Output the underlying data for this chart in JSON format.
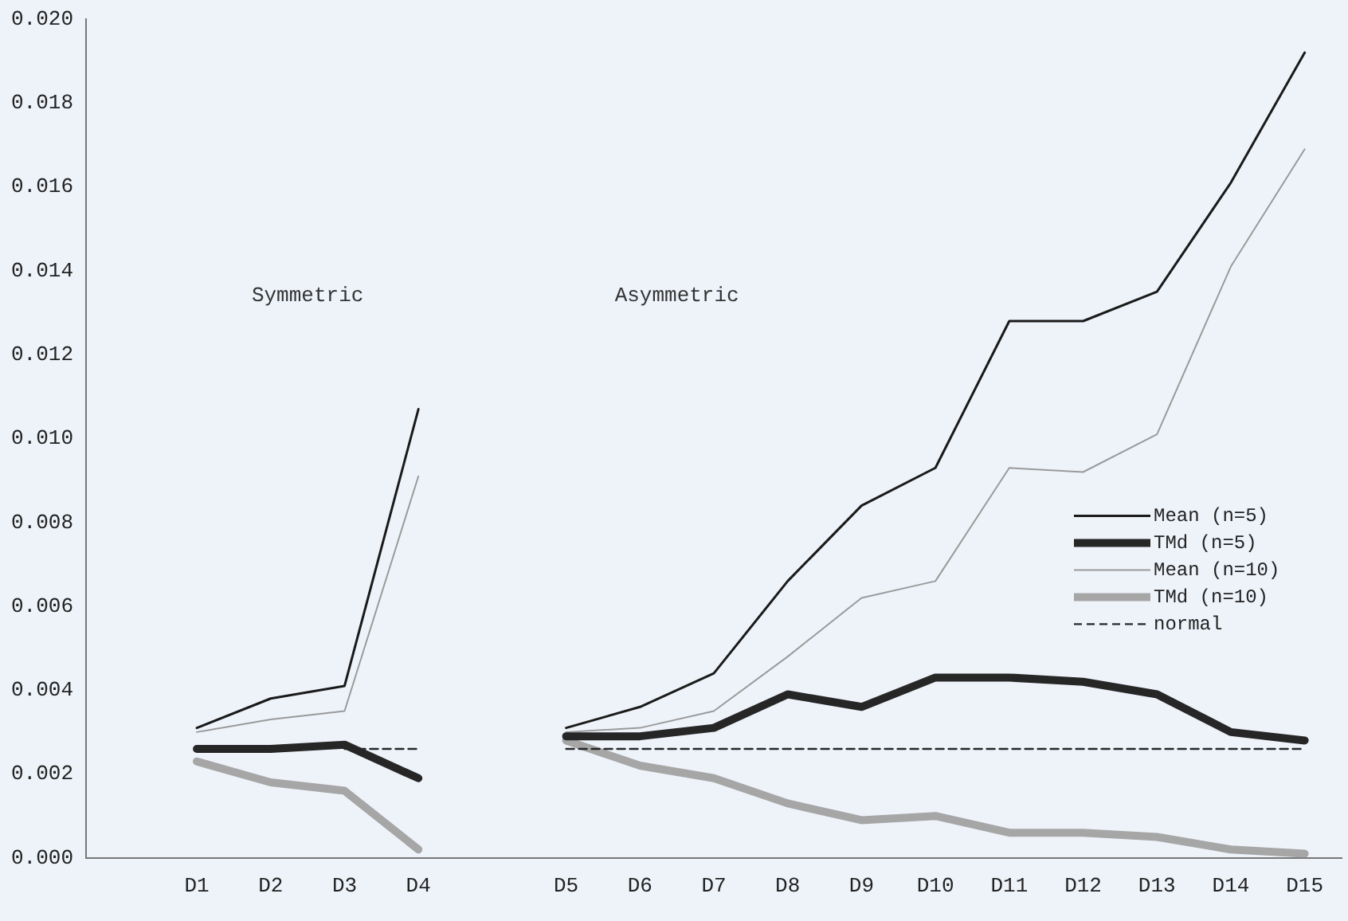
{
  "chart_data": {
    "type": "line",
    "categories": [
      null,
      "D1",
      "D2",
      "D3",
      "D4",
      null,
      "D5",
      "D6",
      "D7",
      "D8",
      "D9",
      "D10",
      "D11",
      "D12",
      "D13",
      "D14",
      "D15"
    ],
    "series": [
      {
        "name": "Mean (n=5)",
        "color": "#1a1a1a",
        "values": [
          null,
          0.0031,
          0.0038,
          0.0041,
          0.0107,
          null,
          0.0031,
          0.0036,
          0.0044,
          0.0066,
          0.0084,
          0.0093,
          0.0128,
          0.0128,
          0.0135,
          0.0161,
          0.0192
        ]
      },
      {
        "name": "TMd (n=5)",
        "color": "#262626",
        "values": [
          null,
          0.0026,
          0.0026,
          0.0027,
          0.0019,
          null,
          0.0029,
          0.0029,
          0.0031,
          0.0039,
          0.0036,
          0.0043,
          0.0043,
          0.0042,
          0.0039,
          0.003,
          0.0028
        ]
      },
      {
        "name": "Mean (n=10)",
        "color": "#9a9a9a",
        "values": [
          null,
          0.003,
          0.0033,
          0.0035,
          0.0091,
          null,
          0.003,
          0.0031,
          0.0035,
          0.0048,
          0.0062,
          0.0066,
          0.0093,
          0.0092,
          0.0101,
          0.0141,
          0.0169
        ]
      },
      {
        "name": "TMd (n=10)",
        "color": "#a6a6a6",
        "values": [
          null,
          0.0023,
          0.0018,
          0.0016,
          0.0002,
          null,
          0.0028,
          0.0022,
          0.0019,
          0.0013,
          0.0009,
          0.001,
          0.0006,
          0.0006,
          0.0005,
          0.0002,
          0.0001
        ]
      },
      {
        "name": "normal",
        "color": "#262626",
        "line_style": "dashed",
        "values": [
          null,
          null,
          null,
          0.0026,
          0.0026,
          null,
          0.0026,
          0.0026,
          0.0026,
          0.0026,
          0.0026,
          0.0026,
          0.0026,
          0.0026,
          0.0026,
          0.0026,
          0.0026
        ]
      }
    ],
    "ylim": [
      0,
      0.02
    ],
    "yticks": [
      {
        "value": 0,
        "label": "0.000"
      },
      {
        "value": 0.002,
        "label": "0.002"
      },
      {
        "value": 0.004,
        "label": "0.004"
      },
      {
        "value": 0.006,
        "label": "0.006"
      },
      {
        "value": 0.008,
        "label": "0.008"
      },
      {
        "value": 0.01,
        "label": "0.010"
      },
      {
        "value": 0.012,
        "label": "0.012"
      },
      {
        "value": 0.014,
        "label": "0.014"
      },
      {
        "value": 0.016,
        "label": "0.016"
      },
      {
        "value": 0.018,
        "label": "0.018"
      },
      {
        "value": 0.02,
        "label": "0.020"
      }
    ],
    "annotations": [
      "Symmetric",
      "Asymmetric"
    ],
    "grid": false,
    "legend": "right",
    "marker": "none"
  }
}
